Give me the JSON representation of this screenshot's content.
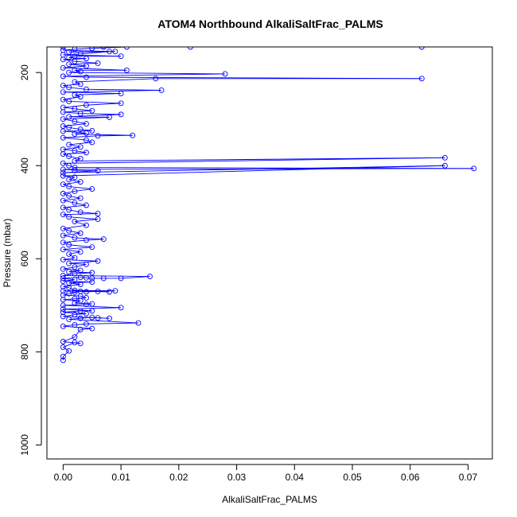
{
  "chart_data": {
    "type": "line",
    "title": "ATOM4 Northbound AlkaliSaltFrac_PALMS",
    "xlabel": "AlkaliSaltFrac_PALMS",
    "ylabel": "Pressure (mbar)",
    "xlim": [
      -0.0028,
      0.0742
    ],
    "ylim": [
      1030,
      145
    ],
    "y_inverted": true,
    "grid": false,
    "x_ticks": [
      0.0,
      0.01,
      0.02,
      0.03,
      0.04,
      0.05,
      0.06,
      0.07
    ],
    "x_tick_labels": [
      "0.00",
      "0.01",
      "0.02",
      "0.03",
      "0.04",
      "0.05",
      "0.06",
      "0.07"
    ],
    "y_ticks": [
      200,
      400,
      600,
      800,
      1000
    ],
    "y_tick_labels": [
      "200",
      "400",
      "600",
      "800",
      "1000"
    ],
    "color": "#0000ff",
    "marker": "open-circle",
    "series": [
      {
        "points": [
          [
            0.0,
            818
          ],
          [
            0.0,
            810
          ],
          [
            0.001,
            798
          ],
          [
            0.0,
            790
          ],
          [
            0.002,
            780
          ],
          [
            0.003,
            782
          ],
          [
            0.0,
            778
          ],
          [
            0.002,
            768
          ],
          [
            0.003,
            752
          ],
          [
            0.005,
            750
          ],
          [
            0.0,
            745
          ],
          [
            0.002,
            742
          ],
          [
            0.004,
            740
          ],
          [
            0.013,
            738
          ],
          [
            0.001,
            730
          ],
          [
            0.003,
            728
          ],
          [
            0.005,
            726
          ],
          [
            0.006,
            727
          ],
          [
            0.008,
            728
          ],
          [
            0.0,
            724
          ],
          [
            0.002,
            720
          ],
          [
            0.004,
            718
          ],
          [
            0.0,
            715
          ],
          [
            0.003,
            712
          ],
          [
            0.005,
            712
          ],
          [
            0.0,
            708
          ],
          [
            0.01,
            705
          ],
          [
            0.0,
            700
          ],
          [
            0.004,
            698
          ],
          [
            0.005,
            697
          ],
          [
            0.002,
            695
          ],
          [
            0.003,
            690
          ],
          [
            0.0,
            688
          ],
          [
            0.002,
            686
          ],
          [
            0.004,
            684
          ],
          [
            0.003,
            680
          ],
          [
            0.0,
            678
          ],
          [
            0.001,
            675
          ],
          [
            0.002,
            672
          ],
          [
            0.003,
            670
          ],
          [
            0.004,
            671
          ],
          [
            0.006,
            670
          ],
          [
            0.008,
            671
          ],
          [
            0.0,
            669
          ],
          [
            0.009,
            669
          ],
          [
            0.002,
            668
          ],
          [
            0.001,
            662
          ],
          [
            0.0,
            660
          ],
          [
            0.003,
            655
          ],
          [
            0.001,
            652
          ],
          [
            0.005,
            650
          ],
          [
            0.0,
            648
          ],
          [
            0.002,
            645
          ],
          [
            0.0,
            642
          ],
          [
            0.003,
            640
          ],
          [
            0.004,
            641
          ],
          [
            0.005,
            642
          ],
          [
            0.007,
            642
          ],
          [
            0.01,
            642
          ],
          [
            0.015,
            638
          ],
          [
            0.0,
            636
          ],
          [
            0.002,
            632
          ],
          [
            0.005,
            630
          ],
          [
            0.001,
            628
          ],
          [
            0.003,
            625
          ],
          [
            0.0,
            622
          ],
          [
            0.002,
            618
          ],
          [
            0.004,
            612
          ],
          [
            0.001,
            610
          ],
          [
            0.006,
            605
          ],
          [
            0.0,
            602
          ],
          [
            0.002,
            598
          ],
          [
            0.001,
            590
          ],
          [
            0.003,
            585
          ],
          [
            0.0,
            580
          ],
          [
            0.005,
            575
          ],
          [
            0.001,
            570
          ],
          [
            0.0,
            565
          ],
          [
            0.004,
            560
          ],
          [
            0.007,
            558
          ],
          [
            0.002,
            555
          ],
          [
            0.0,
            550
          ],
          [
            0.003,
            545
          ],
          [
            0.001,
            540
          ],
          [
            0.0,
            535
          ],
          [
            0.004,
            528
          ],
          [
            0.002,
            520
          ],
          [
            0.006,
            515
          ],
          [
            0.001,
            510
          ],
          [
            0.0,
            505
          ],
          [
            0.006,
            503
          ],
          [
            0.003,
            500
          ],
          [
            0.001,
            495
          ],
          [
            0.0,
            490
          ],
          [
            0.004,
            485
          ],
          [
            0.002,
            480
          ],
          [
            0.0,
            475
          ],
          [
            0.003,
            470
          ],
          [
            0.001,
            465
          ],
          [
            0.0,
            460
          ],
          [
            0.002,
            455
          ],
          [
            0.005,
            450
          ],
          [
            0.001,
            445
          ],
          [
            0.0,
            440
          ],
          [
            0.003,
            435
          ],
          [
            0.001,
            430
          ],
          [
            0.002,
            425
          ],
          [
            0.0,
            422
          ],
          [
            0.066,
            400
          ],
          [
            0.0,
            415
          ],
          [
            0.006,
            411
          ],
          [
            0.002,
            410
          ],
          [
            0.0,
            408
          ],
          [
            0.071,
            406
          ],
          [
            0.002,
            404
          ],
          [
            0.001,
            400
          ],
          [
            0.0,
            395
          ],
          [
            0.066,
            383
          ],
          [
            0.002,
            390
          ],
          [
            0.003,
            385
          ],
          [
            0.001,
            380
          ],
          [
            0.0,
            375
          ],
          [
            0.004,
            372
          ],
          [
            0.002,
            368
          ],
          [
            0.0,
            365
          ],
          [
            0.003,
            360
          ],
          [
            0.001,
            355
          ],
          [
            0.005,
            350
          ],
          [
            0.004,
            345
          ],
          [
            0.0,
            340
          ],
          [
            0.006,
            336
          ],
          [
            0.012,
            335
          ],
          [
            0.002,
            332
          ],
          [
            0.004,
            330
          ],
          [
            0.0,
            326
          ],
          [
            0.005,
            325
          ],
          [
            0.003,
            322
          ],
          [
            0.001,
            318
          ],
          [
            0.0,
            315
          ],
          [
            0.004,
            310
          ],
          [
            0.002,
            305
          ],
          [
            0.0,
            300
          ],
          [
            0.008,
            296
          ],
          [
            0.001,
            295
          ],
          [
            0.01,
            290
          ],
          [
            0.003,
            288
          ],
          [
            0.0,
            285
          ],
          [
            0.005,
            282
          ],
          [
            0.002,
            278
          ],
          [
            0.0,
            275
          ],
          [
            0.004,
            270
          ],
          [
            0.01,
            266
          ],
          [
            0.001,
            262
          ],
          [
            0.0,
            258
          ],
          [
            0.003,
            252
          ],
          [
            0.002,
            248
          ],
          [
            0.01,
            245
          ],
          [
            0.0,
            242
          ],
          [
            0.017,
            238
          ],
          [
            0.004,
            236
          ],
          [
            0.001,
            232
          ],
          [
            0.0,
            228
          ],
          [
            0.003,
            225
          ],
          [
            0.002,
            220
          ],
          [
            0.016,
            213
          ],
          [
            0.062,
            213
          ],
          [
            0.004,
            210
          ],
          [
            0.0,
            208
          ],
          [
            0.028,
            203
          ],
          [
            0.001,
            200
          ],
          [
            0.003,
            198
          ],
          [
            0.002,
            195
          ],
          [
            0.011,
            195
          ],
          [
            0.0,
            190
          ],
          [
            0.004,
            186
          ],
          [
            0.001,
            182
          ],
          [
            0.006,
            180
          ],
          [
            0.002,
            176
          ],
          [
            0.0,
            172
          ],
          [
            0.004,
            170
          ],
          [
            0.001,
            168
          ],
          [
            0.002,
            165
          ],
          [
            0.01,
            165
          ],
          [
            0.0,
            162
          ],
          [
            0.003,
            160
          ],
          [
            0.008,
            155
          ],
          [
            0.001,
            156
          ],
          [
            0.009,
            155
          ],
          [
            0.0,
            152
          ],
          [
            0.002,
            150
          ],
          [
            0.005,
            148
          ],
          [
            0.011,
            145
          ],
          [
            0.022,
            145
          ],
          [
            0.0,
            145
          ],
          [
            0.062,
            145
          ],
          [
            0.007,
            145
          ]
        ]
      }
    ]
  }
}
